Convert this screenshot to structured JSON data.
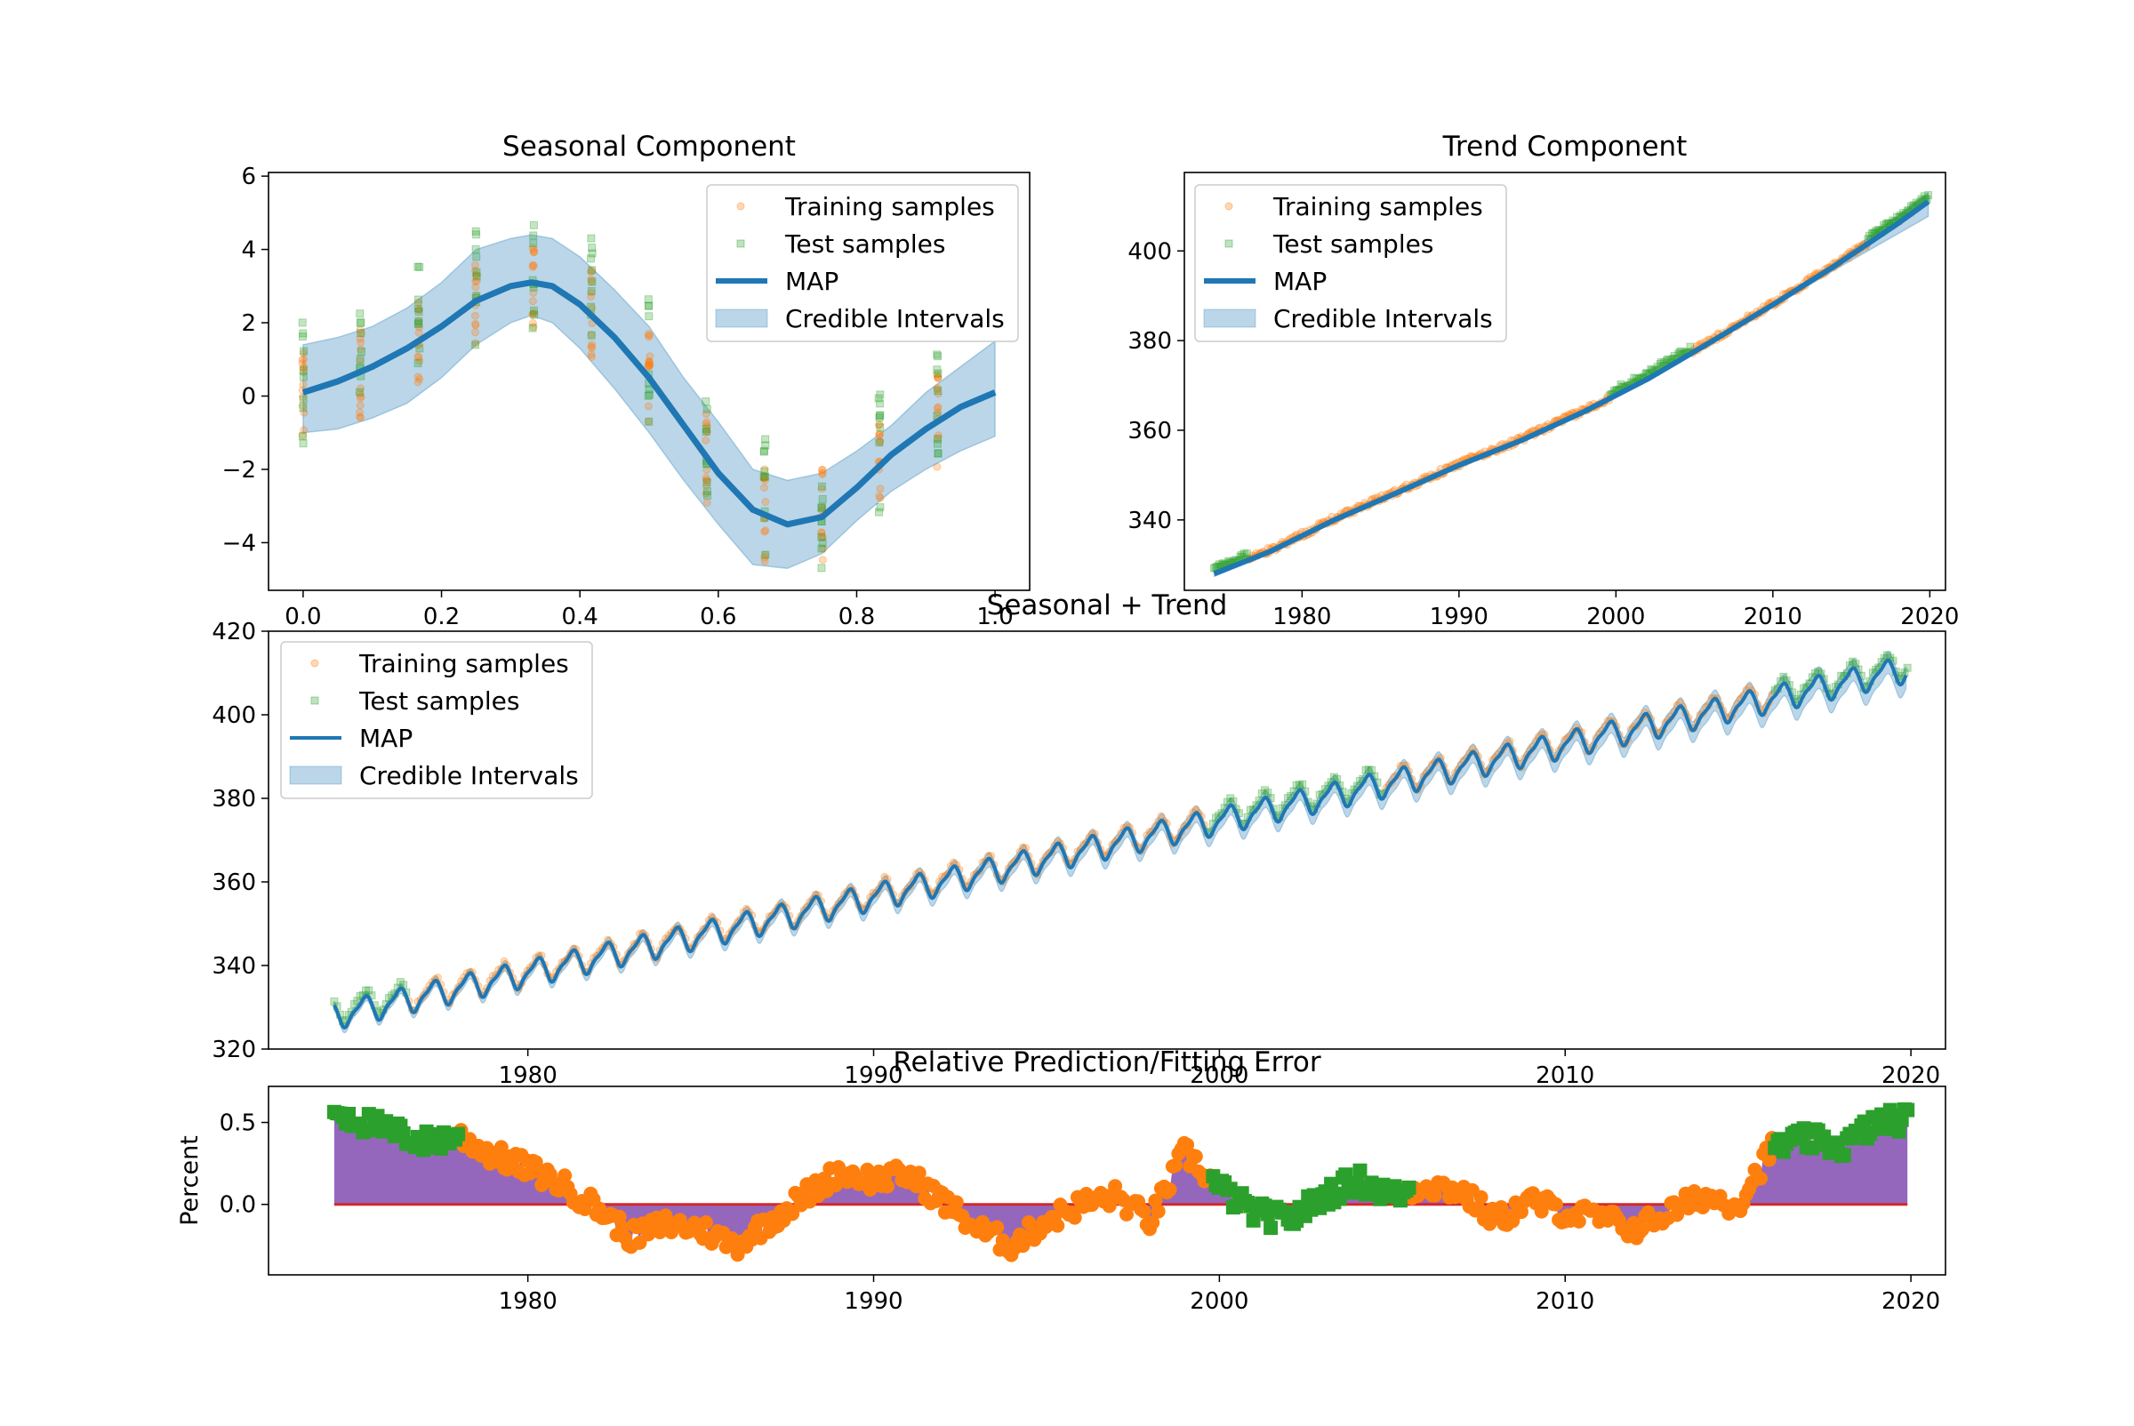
{
  "chart_data": [
    {
      "type": "scatter",
      "title": "Seasonal Component",
      "xlabel": "",
      "ylabel": "",
      "xlim": [
        -0.05,
        1.05
      ],
      "ylim": [
        -5.3,
        6.1
      ],
      "xticks": [
        0.0,
        0.2,
        0.4,
        0.6,
        0.8,
        1.0
      ],
      "xtick_labels": [
        "0.0",
        "0.2",
        "0.4",
        "0.6",
        "0.8",
        "1.0"
      ],
      "yticks": [
        -4,
        -2,
        0,
        2,
        4,
        6
      ],
      "ytick_labels": [
        "−4",
        "−2",
        "0",
        "2",
        "4",
        "6"
      ],
      "legend": {
        "placement": "upper right",
        "entries": [
          "Training samples",
          "Test samples",
          "MAP",
          "Credible Intervals"
        ]
      },
      "map": {
        "x": [
          0.0,
          0.05,
          0.1,
          0.15,
          0.2,
          0.25,
          0.3,
          0.33,
          0.36,
          0.4,
          0.45,
          0.5,
          0.55,
          0.6,
          0.65,
          0.7,
          0.75,
          0.8,
          0.85,
          0.9,
          0.95,
          1.0
        ],
        "y": [
          0.1,
          0.4,
          0.8,
          1.3,
          1.9,
          2.6,
          3.0,
          3.1,
          3.0,
          2.5,
          1.6,
          0.5,
          -0.8,
          -2.1,
          -3.1,
          -3.5,
          -3.3,
          -2.5,
          -1.6,
          -0.9,
          -0.3,
          0.1
        ]
      },
      "credible_interval": {
        "x": [
          0.0,
          0.05,
          0.1,
          0.15,
          0.2,
          0.25,
          0.3,
          0.33,
          0.36,
          0.4,
          0.45,
          0.5,
          0.55,
          0.6,
          0.65,
          0.7,
          0.75,
          0.8,
          0.85,
          0.9,
          0.95,
          1.0
        ],
        "lower": [
          -1.0,
          -0.9,
          -0.6,
          -0.2,
          0.5,
          1.4,
          2.0,
          2.2,
          2.0,
          1.3,
          0.2,
          -1.0,
          -2.3,
          -3.5,
          -4.6,
          -4.7,
          -4.3,
          -3.4,
          -2.6,
          -2.0,
          -1.5,
          -1.1
        ],
        "upper": [
          1.4,
          1.6,
          1.9,
          2.4,
          3.1,
          4.0,
          4.3,
          4.4,
          4.3,
          3.8,
          2.9,
          1.9,
          0.5,
          -0.7,
          -2.0,
          -2.3,
          -2.1,
          -1.5,
          -0.8,
          0.1,
          0.8,
          1.5
        ]
      },
      "sample_months": [
        0.0,
        0.083,
        0.167,
        0.25,
        0.333,
        0.417,
        0.5,
        0.583,
        0.667,
        0.75,
        0.833,
        0.917
      ]
    },
    {
      "type": "scatter",
      "title": "Trend Component",
      "xlabel": "",
      "ylabel": "",
      "xlim": [
        1972.5,
        2021.0
      ],
      "ylim": [
        324.3,
        417.5
      ],
      "xticks": [
        1980,
        1990,
        2000,
        2010,
        2020
      ],
      "xtick_labels": [
        "1980",
        "1990",
        "2000",
        "2010",
        "2020"
      ],
      "yticks": [
        340,
        360,
        380,
        400
      ],
      "ytick_labels": [
        "340",
        "360",
        "380",
        "400"
      ],
      "legend": {
        "placement": "upper left",
        "entries": [
          "Training samples",
          "Test samples",
          "MAP",
          "Credible Intervals"
        ]
      },
      "map": {
        "x": [
          1974.4,
          1978,
          1982,
          1986,
          1990,
          1994,
          1998,
          2002,
          2006,
          2010,
          2014,
          2016,
          2018,
          2019.9
        ],
        "y": [
          328.0,
          333.0,
          339.9,
          346.0,
          352.2,
          357.8,
          364.2,
          371.4,
          379.6,
          388.0,
          396.8,
          401.5,
          406.2,
          411.0
        ]
      },
      "credible_interval": {
        "x": [
          1974.4,
          1978,
          1982,
          1986,
          1990,
          1994,
          1998,
          2002,
          2006,
          2010,
          2014,
          2016,
          2018,
          2019.9
        ],
        "lower": [
          327.4,
          332.5,
          339.4,
          345.5,
          351.7,
          357.3,
          363.7,
          370.9,
          379.1,
          387.5,
          395.9,
          399.9,
          403.9,
          407.7
        ],
        "upper": [
          328.6,
          333.5,
          340.4,
          346.5,
          352.7,
          358.3,
          364.7,
          371.9,
          380.1,
          388.5,
          397.5,
          402.7,
          407.9,
          412.9
        ]
      },
      "train_range": [
        1976.5,
        2016.0
      ],
      "test_ranges": [
        [
          1974.4,
          1976.5
        ],
        [
          1999.6,
          2004.8
        ],
        [
          2016.0,
          2019.9
        ]
      ]
    },
    {
      "type": "line",
      "title": "Seasonal + Trend",
      "xlabel": "",
      "ylabel": "",
      "xlim": [
        1972.5,
        2021.0
      ],
      "ylim": [
        320,
        420
      ],
      "xticks": [
        1980,
        1990,
        2000,
        2010,
        2020
      ],
      "xtick_labels": [
        "1980",
        "1990",
        "2000",
        "2010",
        "2020"
      ],
      "yticks": [
        320,
        340,
        360,
        380,
        400,
        420
      ],
      "ytick_labels": [
        "320",
        "340",
        "360",
        "380",
        "400",
        "420"
      ],
      "legend": {
        "placement": "upper left",
        "entries": [
          "Training samples",
          "Test samples",
          "MAP",
          "Credible Intervals"
        ]
      },
      "x_range": [
        1974.4,
        2019.9
      ],
      "trend_start": 328.0,
      "trend_end": 411.0,
      "seasonal_amplitude": 3.3
    },
    {
      "type": "area",
      "title": "Relative Prediction/Fitting Error",
      "xlabel": "",
      "ylabel": "Percent",
      "xlim": [
        1972.5,
        2021.0
      ],
      "ylim": [
        -0.43,
        0.72
      ],
      "xticks": [
        1980,
        1990,
        2000,
        2010,
        2020
      ],
      "xtick_labels": [
        "1980",
        "1990",
        "2000",
        "2010",
        "2020"
      ],
      "yticks": [
        0.0,
        0.5
      ],
      "ytick_labels": [
        "0.0",
        "0.5"
      ],
      "error": {
        "x": [
          1974.4,
          1975,
          1976,
          1977,
          1978,
          1979,
          1980,
          1981,
          1982,
          1983,
          1984,
          1985,
          1986,
          1987,
          1988,
          1989,
          1990,
          1991,
          1992,
          1993,
          1994,
          1995,
          1996,
          1997,
          1998,
          1999,
          2000,
          2001,
          2002,
          2003,
          2004,
          2005,
          2006,
          2007,
          2008,
          2009,
          2010,
          2011,
          2012,
          2013,
          2014,
          2015,
          2016,
          2017,
          2018,
          2019,
          2019.9
        ],
        "y": [
          0.58,
          0.52,
          0.45,
          0.38,
          0.42,
          0.3,
          0.22,
          0.12,
          -0.02,
          -0.2,
          -0.12,
          -0.15,
          -0.25,
          -0.1,
          0.05,
          0.2,
          0.15,
          0.18,
          0.02,
          -0.15,
          -0.25,
          -0.1,
          0.0,
          0.05,
          -0.1,
          0.32,
          0.1,
          -0.05,
          -0.1,
          0.05,
          0.15,
          0.05,
          0.12,
          0.08,
          -0.1,
          0.02,
          -0.05,
          -0.08,
          -0.15,
          -0.05,
          0.05,
          0.0,
          0.35,
          0.4,
          0.35,
          0.5,
          0.52
        ]
      },
      "test_ranges": [
        [
          1974.4,
          1978.0
        ],
        [
          1999.8,
          2005.5
        ],
        [
          2016.0,
          2019.9
        ]
      ]
    }
  ]
}
